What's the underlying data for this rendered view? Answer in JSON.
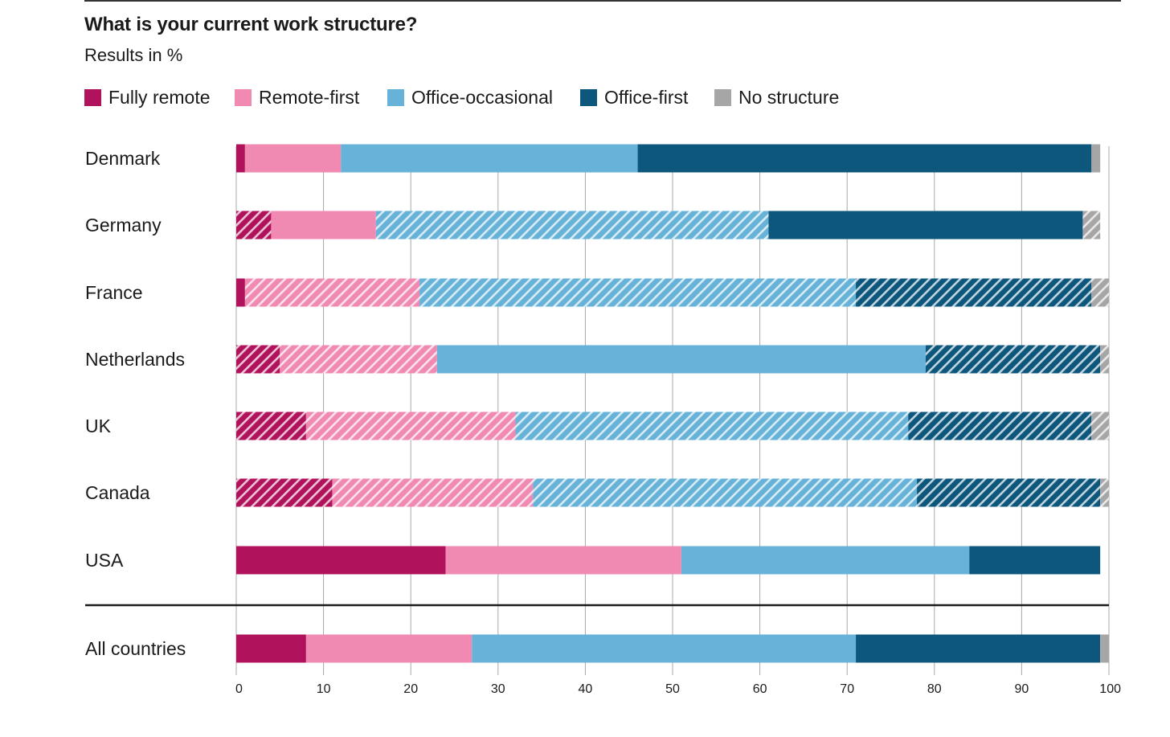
{
  "chart_data": {
    "type": "bar",
    "orientation": "horizontal",
    "stacked": true,
    "title": "What is your current work structure?",
    "subtitle": "Results in %",
    "categories": [
      "Denmark",
      "Germany",
      "France",
      "Netherlands",
      "UK",
      "Canada",
      "USA",
      "All countries"
    ],
    "series": [
      {
        "name": "Fully remote",
        "color": "#b0125b",
        "values": [
          1,
          4,
          1,
          5,
          8,
          11,
          24,
          8
        ]
      },
      {
        "name": "Remote-first",
        "color": "#f08ab2",
        "values": [
          11,
          12,
          20,
          18,
          24,
          23,
          27,
          19
        ]
      },
      {
        "name": "Office-occasional",
        "color": "#66b2d8",
        "values": [
          34,
          45,
          50,
          56,
          45,
          44,
          33,
          44
        ]
      },
      {
        "name": "Office-first",
        "color": "#0d577d",
        "values": [
          52,
          36,
          27,
          20,
          21,
          21,
          15,
          28
        ]
      },
      {
        "name": "No structure",
        "color": "#a6a6a6",
        "values": [
          1,
          2,
          2,
          1,
          2,
          1,
          0,
          1
        ]
      }
    ],
    "hatched": [
      [
        false,
        false,
        false,
        false,
        false
      ],
      [
        true,
        false,
        true,
        false,
        true
      ],
      [
        false,
        true,
        true,
        true,
        true
      ],
      [
        true,
        true,
        false,
        true,
        true
      ],
      [
        true,
        true,
        true,
        true,
        true
      ],
      [
        true,
        true,
        true,
        true,
        true
      ],
      [
        false,
        false,
        false,
        false,
        false
      ],
      [
        false,
        false,
        false,
        false,
        false
      ]
    ],
    "x_ticks": [
      "0",
      "10",
      "20",
      "30",
      "40",
      "50",
      "60",
      "70",
      "80",
      "90",
      "100"
    ],
    "xlim": [
      0,
      100
    ],
    "grid": true,
    "legend_position": "top"
  }
}
